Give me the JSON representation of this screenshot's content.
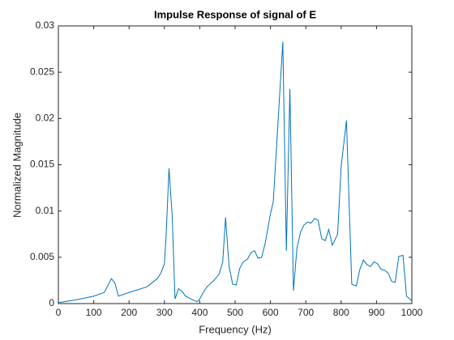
{
  "chart_data": {
    "type": "line",
    "title": "Impulse Response of signal of E",
    "x_label": "Frequency (Hz)",
    "y_label": "Normalized Magnitude",
    "xlim": [
      0,
      1000
    ],
    "ylim": [
      0,
      0.03
    ],
    "xticks": [
      0,
      100,
      200,
      300,
      400,
      500,
      600,
      700,
      800,
      900,
      1000
    ],
    "yticks": [
      0,
      0.005,
      0.01,
      0.015,
      0.02,
      0.025,
      0.03
    ],
    "series": [
      {
        "name": "E",
        "color": "#0072bd",
        "x": [
          0,
          50,
          100,
          130,
          150,
          160,
          170,
          200,
          250,
          270,
          280,
          290,
          300,
          305,
          313,
          322,
          330,
          340,
          350,
          360,
          380,
          393,
          400,
          410,
          420,
          440,
          455,
          465,
          473,
          483,
          493,
          503,
          513,
          523,
          535,
          545,
          555,
          565,
          575,
          585,
          600,
          608,
          635,
          645,
          655,
          665,
          675,
          685,
          695,
          705,
          715,
          725,
          735,
          745,
          755,
          765,
          775,
          790,
          800,
          815,
          830,
          843,
          853,
          863,
          873,
          883,
          893,
          903,
          913,
          923,
          933,
          943,
          953,
          963,
          975,
          985,
          1000
        ],
        "values": [
          0.0001,
          0.0004,
          0.0008,
          0.0012,
          0.0027,
          0.0022,
          0.0008,
          0.0012,
          0.0018,
          0.0024,
          0.0027,
          0.0033,
          0.0043,
          0.0075,
          0.0146,
          0.0095,
          0.0005,
          0.0016,
          0.0013,
          0.0008,
          0.0004,
          0.0002,
          0.0005,
          0.0012,
          0.0018,
          0.0025,
          0.0032,
          0.0045,
          0.0093,
          0.004,
          0.0021,
          0.002,
          0.0038,
          0.0045,
          0.0048,
          0.0055,
          0.0057,
          0.0049,
          0.005,
          0.0065,
          0.0097,
          0.011,
          0.0283,
          0.0057,
          0.0232,
          0.0014,
          0.006,
          0.0077,
          0.0085,
          0.0088,
          0.0087,
          0.0092,
          0.009,
          0.007,
          0.0068,
          0.008,
          0.0063,
          0.0075,
          0.0148,
          0.0198,
          0.0021,
          0.0019,
          0.0037,
          0.0047,
          0.0042,
          0.004,
          0.0045,
          0.0043,
          0.0037,
          0.0036,
          0.0033,
          0.0024,
          0.0023,
          0.0051,
          0.0052,
          0.0008,
          0.0003
        ]
      }
    ]
  }
}
